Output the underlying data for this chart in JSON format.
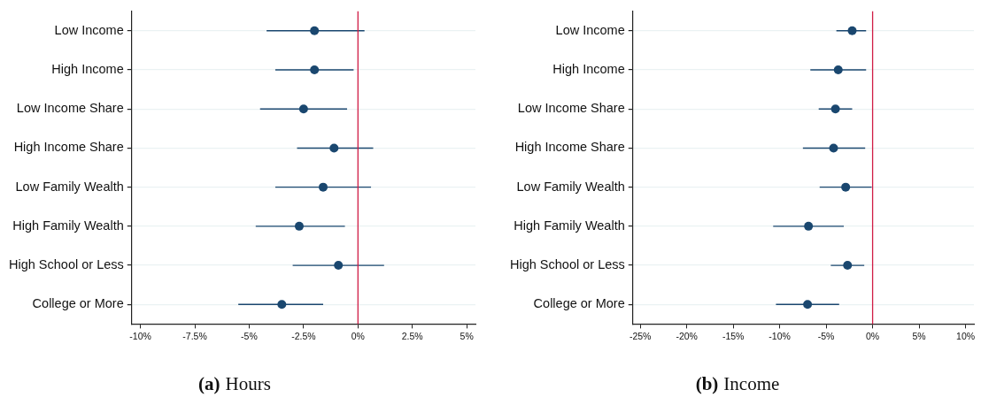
{
  "chart_data": [
    {
      "type": "scatter",
      "orientation": "horizontal",
      "title": "(a) Hours",
      "categories": [
        "Low Income",
        "High Income",
        "Low Income Share",
        "High Income Share",
        "Low Family Wealth",
        "High Family Wealth",
        "High School or Less",
        "College or More"
      ],
      "values": [
        -2.0,
        -2.0,
        -2.5,
        -1.1,
        -1.6,
        -2.7,
        -0.9,
        -3.5
      ],
      "errors": [
        [
          -4.2,
          0.3
        ],
        [
          -3.8,
          -0.2
        ],
        [
          -4.5,
          -0.5
        ],
        [
          -2.8,
          0.7
        ],
        [
          -3.8,
          0.6
        ],
        [
          -4.7,
          -0.6
        ],
        [
          -3.0,
          1.2
        ],
        [
          -5.5,
          -1.6
        ]
      ],
      "color": "#1a476f",
      "marker": "circle",
      "xlim": [
        -10.4,
        5.4
      ],
      "xticks": [
        {
          "value": -10,
          "label": "-10%"
        },
        {
          "value": -7.5,
          "label": "-7.5%"
        },
        {
          "value": -5,
          "label": "-5%"
        },
        {
          "value": -2.5,
          "label": "-2.5%"
        },
        {
          "value": 0,
          "label": "0%"
        },
        {
          "value": 2.5,
          "label": "2.5%"
        },
        {
          "value": 5,
          "label": "5%"
        }
      ],
      "ref_lines": [
        {
          "axis": "x",
          "value": 0,
          "color": "#d01c45"
        }
      ],
      "grid": "y"
    },
    {
      "type": "scatter",
      "orientation": "horizontal",
      "title": "(b) Income",
      "categories": [
        "Low Income",
        "High Income",
        "Low Income Share",
        "High Income Share",
        "Low Family Wealth",
        "High Family Wealth",
        "High School or Less",
        "College or More"
      ],
      "values": [
        -2.2,
        -3.7,
        -4.0,
        -4.2,
        -2.9,
        -6.9,
        -2.7,
        -7.0
      ],
      "errors": [
        [
          -3.9,
          -0.7
        ],
        [
          -6.7,
          -0.7
        ],
        [
          -5.8,
          -2.2
        ],
        [
          -7.5,
          -0.8
        ],
        [
          -5.7,
          -0.1
        ],
        [
          -10.7,
          -3.1
        ],
        [
          -4.5,
          -0.9
        ],
        [
          -10.4,
          -3.6
        ]
      ],
      "color": "#1a476f",
      "marker": "circle",
      "xlim": [
        -25.8,
        10.9
      ],
      "xticks": [
        {
          "value": -25,
          "label": "-25%"
        },
        {
          "value": -20,
          "label": "-20%"
        },
        {
          "value": -15,
          "label": "-15%"
        },
        {
          "value": -10,
          "label": "-10%"
        },
        {
          "value": -5,
          "label": "-5%"
        },
        {
          "value": 0,
          "label": "0%"
        },
        {
          "value": 5,
          "label": "5%"
        },
        {
          "value": 10,
          "label": "10%"
        }
      ],
      "ref_lines": [
        {
          "axis": "x",
          "value": 0,
          "color": "#d01c45"
        }
      ],
      "grid": "y"
    }
  ]
}
